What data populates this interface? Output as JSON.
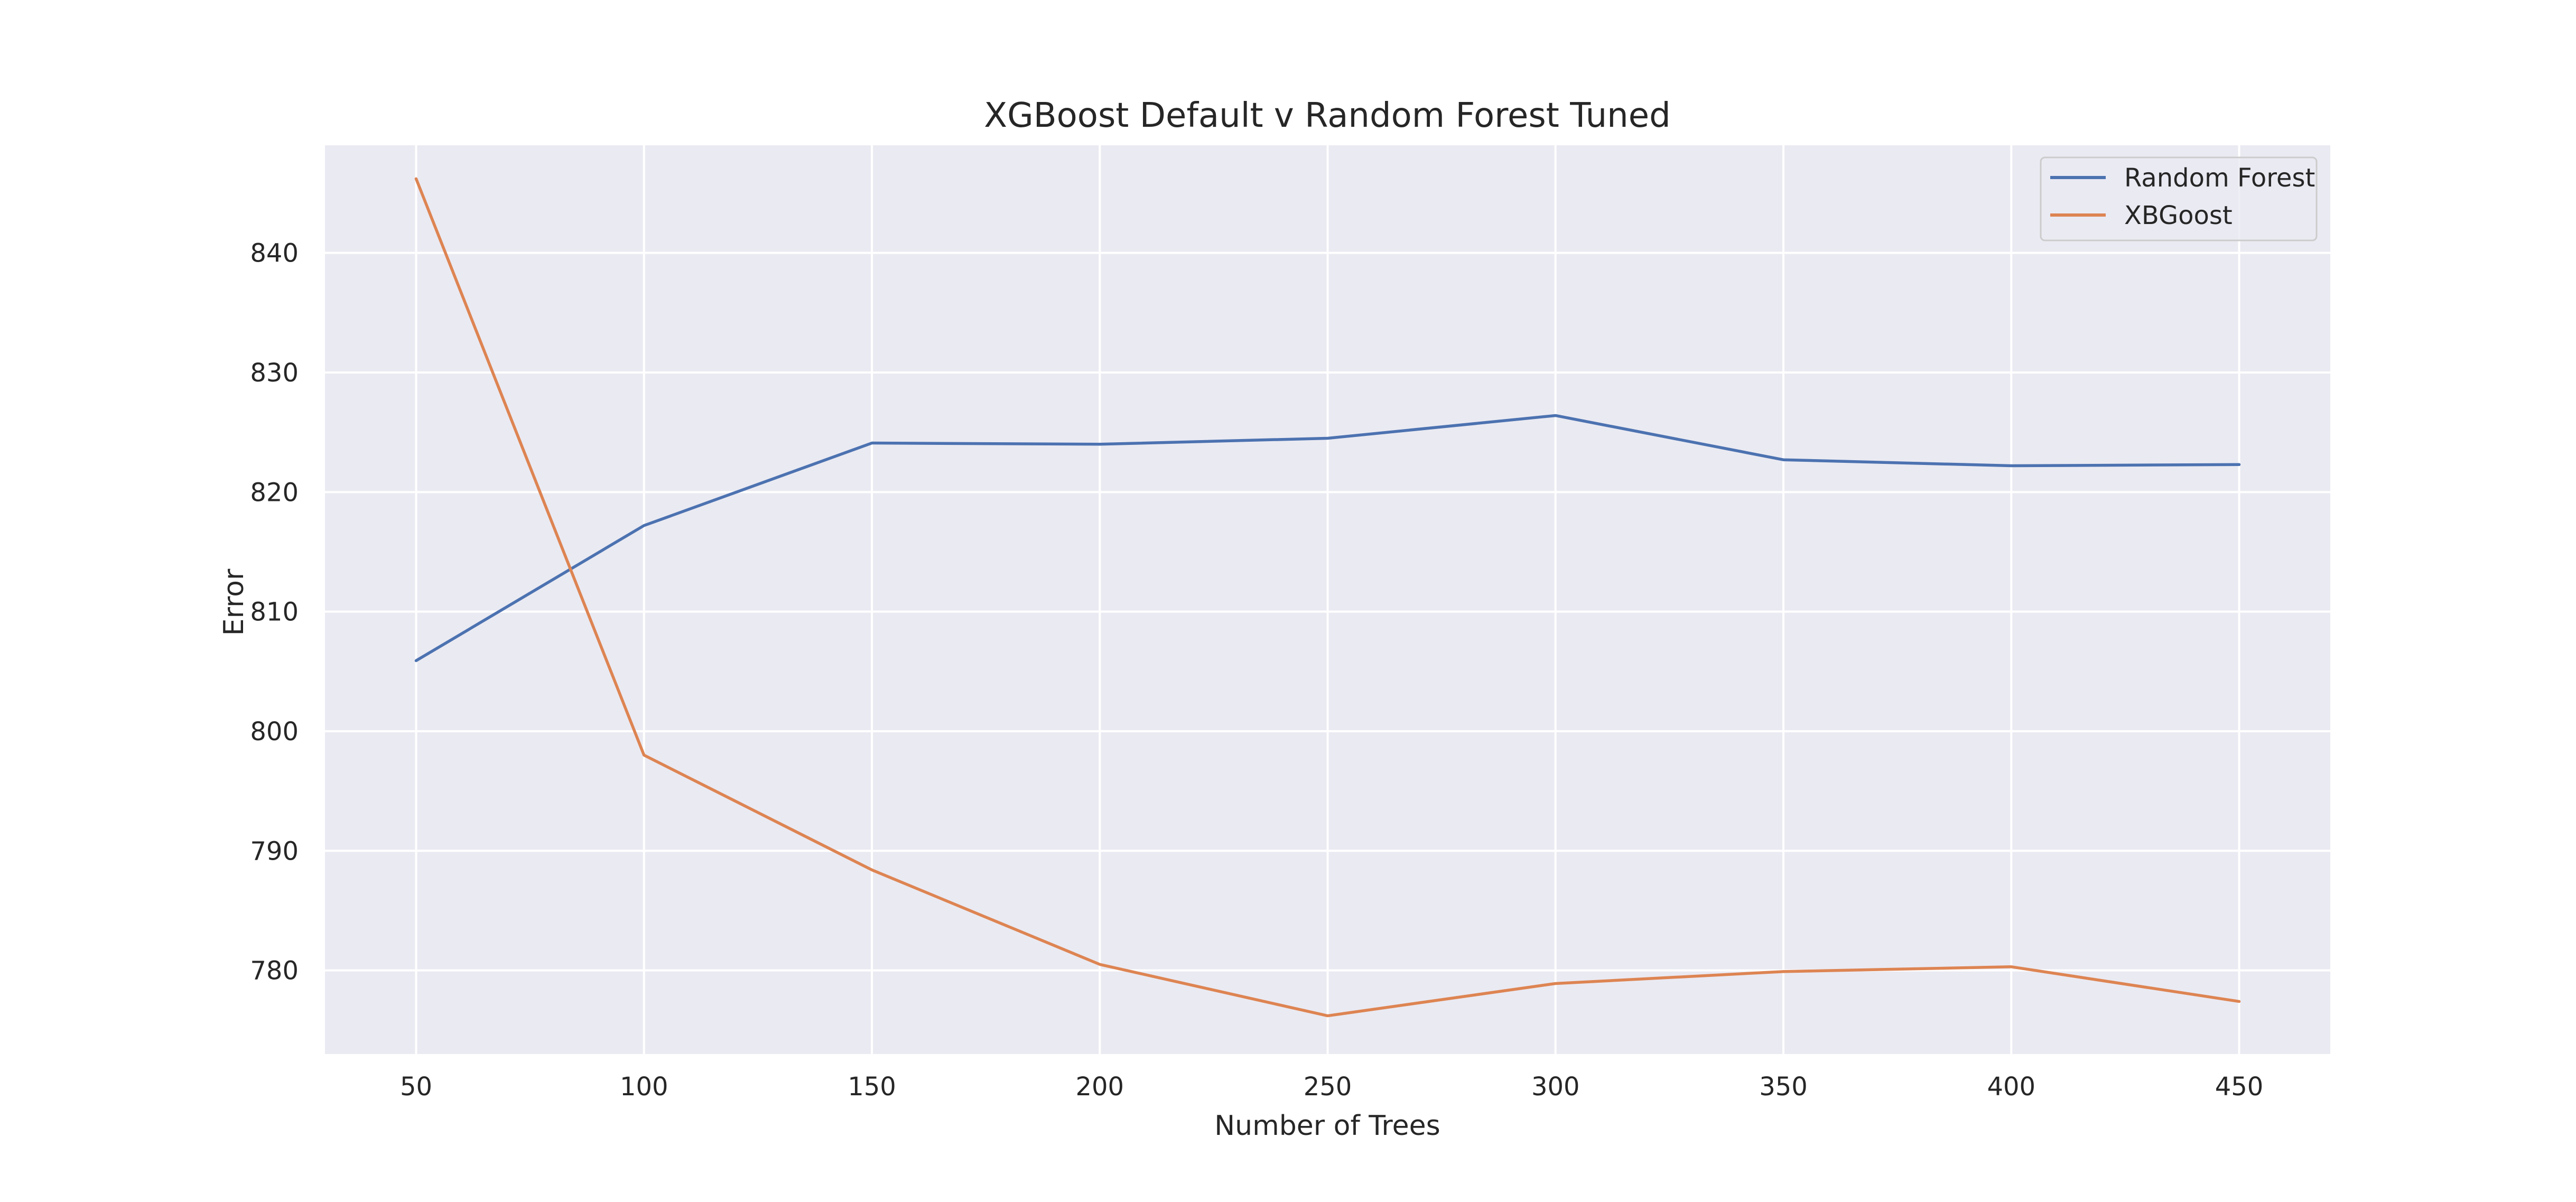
{
  "chart_data": {
    "type": "line",
    "title": "XGBoost Default v Random Forest Tuned",
    "xlabel": "Number of Trees",
    "ylabel": "Error",
    "x": [
      50,
      100,
      150,
      200,
      250,
      300,
      350,
      400,
      450
    ],
    "xlim": [
      30,
      470
    ],
    "ylim": [
      773,
      849
    ],
    "xticks": [
      50,
      100,
      150,
      200,
      250,
      300,
      350,
      400,
      450
    ],
    "yticks": [
      780,
      790,
      800,
      810,
      820,
      830,
      840
    ],
    "grid": true,
    "legend_position": "upper right",
    "series": [
      {
        "name": "Random Forest",
        "color": "#4c72b0",
        "values": [
          805.9,
          817.2,
          824.1,
          824.0,
          824.5,
          826.4,
          822.7,
          822.2,
          822.3
        ]
      },
      {
        "name": "XBGoost",
        "color": "#dd8452",
        "values": [
          846.2,
          798.0,
          788.4,
          780.5,
          776.2,
          778.9,
          779.9,
          780.3,
          777.4
        ]
      }
    ],
    "colors": {
      "plot_background": "#eaeaf2",
      "grid": "#ffffff",
      "text": "#262626"
    }
  }
}
